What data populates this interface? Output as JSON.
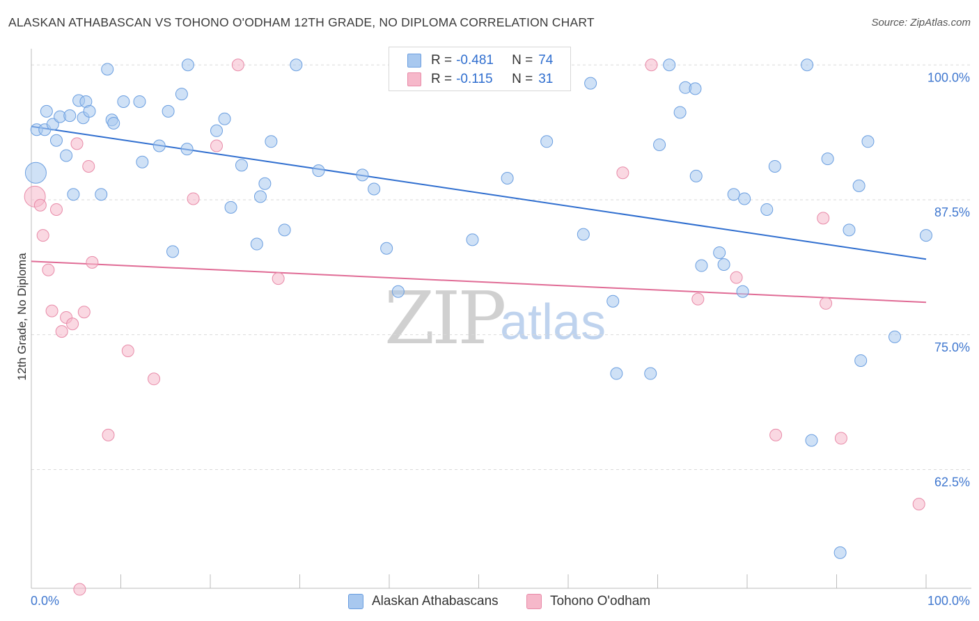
{
  "title": "ALASKAN ATHABASCAN VS TOHONO O'ODHAM 12TH GRADE, NO DIPLOMA CORRELATION CHART",
  "source": "Source: ZipAtlas.com",
  "watermark": {
    "zip": "ZIP",
    "atlas": "atlas"
  },
  "legend": {
    "rows": [
      {
        "r_label": "R = ",
        "r_value": "-0.481",
        "n_label": "N = ",
        "n_value": "74",
        "color": "#a8c8ef"
      },
      {
        "r_label": "R = ",
        "r_value": "-0.115",
        "n_label": "N = ",
        "n_value": "31",
        "color": "#f6b8ca"
      }
    ]
  },
  "bottom_legend": [
    {
      "label": "Alaskan Athabascans",
      "color": "#a8c8ef"
    },
    {
      "label": "Tohono O'odham",
      "color": "#f6b8ca"
    }
  ],
  "chart_data": {
    "type": "scatter",
    "title": "ALASKAN ATHABASCAN VS TOHONO O'ODHAM 12TH GRADE, NO DIPLOMA CORRELATION CHART",
    "xlabel": "",
    "ylabel": "12th Grade, No Diploma",
    "xlim": [
      0,
      100
    ],
    "ylim": [
      51.5,
      101.5
    ],
    "x_tick_labels": [
      {
        "value": 0,
        "label": "0.0%"
      },
      {
        "value": 100,
        "label": "100.0%"
      }
    ],
    "y_tick_labels": [
      {
        "value": 100,
        "label": "100.0%"
      },
      {
        "value": 87.5,
        "label": "87.5%"
      },
      {
        "value": 75,
        "label": "75.0%"
      },
      {
        "value": 62.5,
        "label": "62.5%"
      }
    ],
    "grid": true,
    "legend_position": "top-center",
    "series": [
      {
        "name": "Alaskan Athabascans",
        "color": "#a8c8ef",
        "stroke": "#6a9ee0",
        "trend": {
          "x": [
            0,
            100
          ],
          "y": [
            94.3,
            82.0
          ],
          "color": "#2f6ecf"
        },
        "points": [
          [
            0.5,
            90.0,
            "large"
          ],
          [
            0.6,
            94.0
          ],
          [
            1.5,
            94.0
          ],
          [
            1.7,
            95.7
          ],
          [
            2.4,
            94.5
          ],
          [
            2.8,
            93.0
          ],
          [
            3.2,
            95.2
          ],
          [
            3.9,
            91.6
          ],
          [
            4.3,
            95.3
          ],
          [
            4.7,
            88.0
          ],
          [
            5.3,
            96.7
          ],
          [
            5.8,
            95.1
          ],
          [
            6.1,
            96.6
          ],
          [
            6.5,
            95.7
          ],
          [
            7.8,
            88.0
          ],
          [
            8.5,
            99.6
          ],
          [
            9.0,
            94.9
          ],
          [
            9.2,
            94.6
          ],
          [
            10.3,
            96.6
          ],
          [
            12.1,
            96.6
          ],
          [
            12.4,
            91.0
          ],
          [
            14.3,
            92.5
          ],
          [
            15.3,
            95.7
          ],
          [
            15.8,
            82.7
          ],
          [
            16.8,
            97.3
          ],
          [
            17.4,
            92.2
          ],
          [
            17.5,
            100.0
          ],
          [
            20.7,
            93.9
          ],
          [
            21.6,
            95.0
          ],
          [
            22.3,
            86.8
          ],
          [
            23.5,
            90.7
          ],
          [
            25.2,
            83.4
          ],
          [
            25.6,
            87.8
          ],
          [
            26.1,
            89.0
          ],
          [
            26.8,
            92.9
          ],
          [
            28.3,
            84.7
          ],
          [
            29.6,
            100.0
          ],
          [
            32.1,
            90.2
          ],
          [
            37.0,
            89.8
          ],
          [
            38.3,
            88.5
          ],
          [
            39.7,
            83.0
          ],
          [
            41.0,
            79.0
          ],
          [
            49.3,
            83.8
          ],
          [
            53.2,
            89.5
          ],
          [
            57.6,
            92.9
          ],
          [
            61.7,
            84.3
          ],
          [
            62.5,
            98.3
          ],
          [
            65.0,
            78.1
          ],
          [
            65.4,
            71.4
          ],
          [
            69.2,
            71.4
          ],
          [
            70.2,
            92.6
          ],
          [
            71.3,
            100.0
          ],
          [
            72.5,
            95.6
          ],
          [
            73.1,
            97.9
          ],
          [
            74.2,
            97.8
          ],
          [
            74.3,
            89.7
          ],
          [
            74.9,
            81.4
          ],
          [
            76.9,
            82.6
          ],
          [
            77.4,
            81.5
          ],
          [
            78.5,
            88.0
          ],
          [
            79.5,
            79.0
          ],
          [
            79.7,
            87.6
          ],
          [
            82.2,
            86.6
          ],
          [
            83.1,
            90.6
          ],
          [
            86.7,
            100.0
          ],
          [
            87.2,
            65.2
          ],
          [
            89.0,
            91.3
          ],
          [
            90.4,
            54.8
          ],
          [
            91.4,
            84.7
          ],
          [
            92.5,
            88.8
          ],
          [
            92.7,
            72.6
          ],
          [
            93.5,
            92.9
          ],
          [
            96.5,
            74.8
          ],
          [
            100.0,
            84.2
          ]
        ]
      },
      {
        "name": "Tohono O'odham",
        "color": "#f6b8ca",
        "stroke": "#e88aa8",
        "trend": {
          "x": [
            0,
            100
          ],
          "y": [
            81.8,
            78.0
          ],
          "color": "#e06b95"
        },
        "points": [
          [
            0.4,
            87.8,
            "large"
          ],
          [
            1.0,
            87.0
          ],
          [
            1.3,
            84.2
          ],
          [
            1.9,
            81.0
          ],
          [
            2.3,
            77.2
          ],
          [
            2.8,
            86.6
          ],
          [
            3.4,
            75.3
          ],
          [
            3.9,
            76.6
          ],
          [
            4.6,
            76.0
          ],
          [
            5.1,
            92.7
          ],
          [
            5.4,
            51.4
          ],
          [
            5.9,
            77.1
          ],
          [
            6.4,
            90.6
          ],
          [
            6.8,
            81.7
          ],
          [
            8.6,
            65.7
          ],
          [
            10.8,
            73.5
          ],
          [
            13.7,
            70.9
          ],
          [
            18.1,
            87.6
          ],
          [
            20.7,
            92.5
          ],
          [
            23.1,
            100.0
          ],
          [
            27.6,
            80.2
          ],
          [
            47.5,
            100.0
          ],
          [
            66.1,
            90.0
          ],
          [
            69.3,
            100.0
          ],
          [
            74.5,
            78.3
          ],
          [
            78.8,
            80.3
          ],
          [
            83.2,
            65.7
          ],
          [
            88.5,
            85.8
          ],
          [
            88.8,
            77.9
          ],
          [
            90.5,
            65.4
          ],
          [
            99.2,
            59.3
          ]
        ]
      }
    ]
  }
}
